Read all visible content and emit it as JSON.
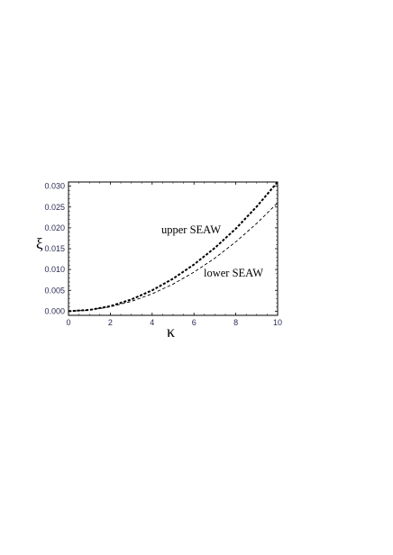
{
  "chart_data": {
    "type": "line",
    "title": "",
    "xlabel": "κ",
    "ylabel": "ξ",
    "xlim": [
      0,
      10
    ],
    "ylim": [
      -0.001,
      0.031
    ],
    "x_ticks": [
      0,
      2,
      4,
      6,
      8,
      10
    ],
    "x_tick_labels": [
      "0",
      "2",
      "4",
      "6",
      "8",
      "10"
    ],
    "y_ticks": [
      0.0,
      0.005,
      0.01,
      0.015,
      0.02,
      0.025,
      0.03
    ],
    "y_tick_labels": [
      "0.000",
      "0.005",
      "0.010",
      "0.015",
      "0.020",
      "0.025",
      "0.030"
    ],
    "grid": false,
    "x": [
      0,
      1,
      2,
      3,
      4,
      5,
      6,
      7,
      8,
      9,
      10
    ],
    "series": [
      {
        "name": "upper SEAW",
        "style": "thick-dashed",
        "values": [
          0.0,
          0.0003,
          0.0012,
          0.0028,
          0.005,
          0.0078,
          0.0112,
          0.0152,
          0.0198,
          0.0251,
          0.031
        ]
      },
      {
        "name": "lower SEAW",
        "style": "thin-dashed",
        "values": [
          0.0,
          0.00026,
          0.00104,
          0.00234,
          0.00416,
          0.0065,
          0.00936,
          0.01274,
          0.01664,
          0.02106,
          0.026
        ]
      }
    ],
    "annotations": [
      {
        "text": "upper SEAW"
      },
      {
        "text": "lower SEAW"
      }
    ],
    "colors": {
      "axis": "#000000",
      "line": "#000000",
      "tick_label": "#2a2a55"
    }
  }
}
